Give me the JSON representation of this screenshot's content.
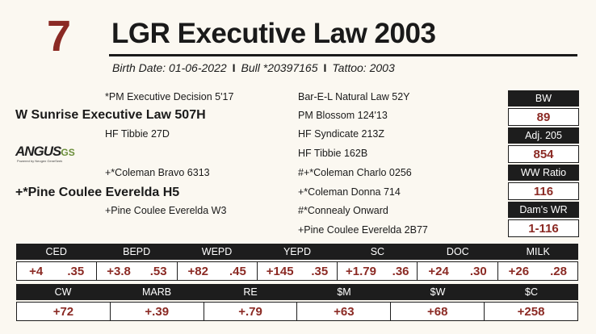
{
  "lot": "7",
  "title": "LGR Executive Law 2003",
  "subline": {
    "birth_date": "Birth Date: 01-06-2022",
    "bull": "Bull *20397165",
    "tattoo": "Tattoo: 2003",
    "separator": "I"
  },
  "pedigree": {
    "sire_sire": "*PM Executive Decision 5'17",
    "sire": "W Sunrise Executive Law 507H",
    "sire_dam": "HF Tibbie 27D",
    "dam_sire": "+*Coleman Bravo 6313",
    "dam": "+*Pine Coulee Everelda H5",
    "dam_dam": "+Pine Coulee Everelda W3",
    "g1": "Bar-E-L Natural Law 52Y",
    "g2": "PM Blossom 124'13",
    "g3": "HF Syndicate 213Z",
    "g4": "HF Tibbie 162B",
    "g5": "#+*Coleman Charlo 0256",
    "g6": "+*Coleman Donna  714",
    "g7": "#*Connealy Onward",
    "g8": "+Pine Coulee Everelda 2B77"
  },
  "logo": {
    "main": "ANGUS",
    "suffix": "GS",
    "tagline": "Powered by Neogen GeneSeek"
  },
  "stats": [
    {
      "label": "BW",
      "value": "89"
    },
    {
      "label": "Adj. 205",
      "value": "854"
    },
    {
      "label": "WW Ratio",
      "value": "116"
    },
    {
      "label": "Dam's WR",
      "value": "1-116"
    }
  ],
  "epd_row1": [
    {
      "label": "CED",
      "value": "+4",
      "acc": ".35"
    },
    {
      "label": "BEPD",
      "value": "+3.8",
      "acc": ".53"
    },
    {
      "label": "WEPD",
      "value": "+82",
      "acc": ".45"
    },
    {
      "label": "YEPD",
      "value": "+145",
      "acc": ".35"
    },
    {
      "label": "SC",
      "value": "+1.79",
      "acc": ".36"
    },
    {
      "label": "DOC",
      "value": "+24",
      "acc": ".30"
    },
    {
      "label": "MILK",
      "value": "+26",
      "acc": ".28"
    }
  ],
  "epd_row2": [
    {
      "label": "CW",
      "value": "+72"
    },
    {
      "label": "MARB",
      "value": "+.39"
    },
    {
      "label": "RE",
      "value": "+.79"
    },
    {
      "label": "$M",
      "value": "+63"
    },
    {
      "label": "$W",
      "value": "+68"
    },
    {
      "label": "$C",
      "value": "+258"
    }
  ]
}
